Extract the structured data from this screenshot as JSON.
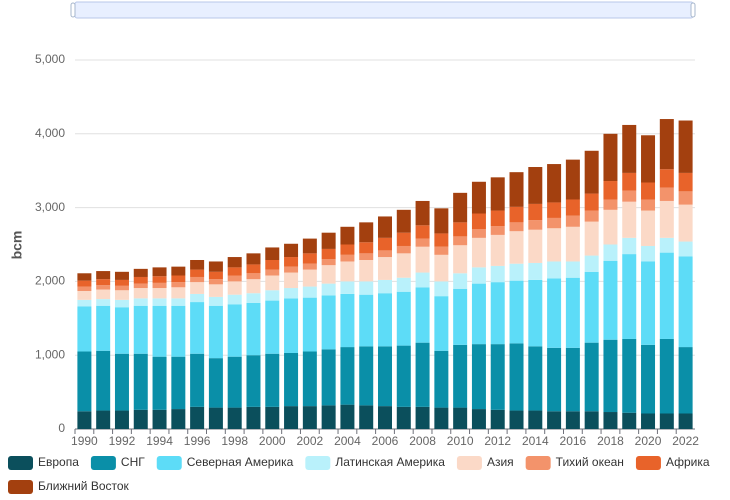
{
  "chart_data": {
    "type": "stacked-bar",
    "y_label": "bcm",
    "categories": [
      "1990",
      null,
      "1992",
      null,
      "1994",
      null,
      "1996",
      null,
      "1998",
      null,
      "2000",
      null,
      "2002",
      null,
      "2004",
      null,
      "2006",
      null,
      "2008",
      null,
      "2010",
      null,
      "2012",
      null,
      "2014",
      null,
      "2016",
      null,
      "2018",
      null,
      "2020",
      null,
      "2022"
    ],
    "ylim": [
      0,
      5000
    ],
    "yticks": [
      0,
      {
        "value": 1000,
        "label": "1,000"
      },
      {
        "value": 2000,
        "label": "2,000"
      },
      {
        "value": 3000,
        "label": "3,000"
      },
      {
        "value": 4000,
        "label": "4,000"
      },
      {
        "value": 5000,
        "label": "5,000"
      }
    ],
    "grid": true,
    "legend_position": "bottom",
    "series": [
      {
        "name": "Европа",
        "color": "#0b4f5c",
        "values": [
          240,
          250,
          250,
          260,
          260,
          270,
          300,
          290,
          290,
          300,
          300,
          310,
          310,
          320,
          330,
          320,
          310,
          300,
          300,
          290,
          290,
          270,
          260,
          250,
          250,
          240,
          240,
          240,
          230,
          220,
          210,
          210,
          210
        ]
      },
      {
        "name": "СНГ",
        "color": "#0a8fa8",
        "values": [
          810,
          810,
          770,
          760,
          720,
          710,
          720,
          670,
          690,
          700,
          720,
          720,
          740,
          760,
          780,
          800,
          810,
          830,
          870,
          770,
          850,
          880,
          890,
          910,
          870,
          860,
          860,
          930,
          980,
          1000,
          930,
          1010,
          900
        ]
      },
      {
        "name": "Северная Америка",
        "color": "#5ddcf7",
        "values": [
          610,
          610,
          630,
          650,
          690,
          690,
          700,
          710,
          710,
          710,
          720,
          740,
          730,
          730,
          720,
          700,
          720,
          730,
          750,
          740,
          760,
          820,
          840,
          850,
          900,
          940,
          950,
          960,
          1070,
          1150,
          1130,
          1170,
          1230
        ]
      },
      {
        "name": "Латинская Америка",
        "color": "#b9f1fb",
        "values": [
          90,
          90,
          100,
          100,
          100,
          100,
          110,
          120,
          130,
          130,
          140,
          140,
          150,
          160,
          170,
          180,
          180,
          190,
          200,
          200,
          210,
          220,
          220,
          230,
          230,
          230,
          220,
          220,
          220,
          220,
          210,
          200,
          200
        ]
      },
      {
        "name": "Азия",
        "color": "#fbd9c7",
        "values": [
          120,
          130,
          130,
          140,
          140,
          150,
          160,
          170,
          180,
          190,
          200,
          210,
          230,
          250,
          270,
          290,
          310,
          330,
          350,
          360,
          380,
          400,
          420,
          440,
          450,
          450,
          470,
          460,
          470,
          490,
          480,
          500,
          500
        ]
      },
      {
        "name": "Тихий океан",
        "color": "#f3936b",
        "values": [
          60,
          60,
          60,
          60,
          70,
          70,
          70,
          70,
          80,
          80,
          80,
          80,
          80,
          80,
          90,
          90,
          90,
          100,
          110,
          110,
          120,
          120,
          120,
          120,
          130,
          140,
          150,
          150,
          140,
          150,
          150,
          180,
          180
        ]
      },
      {
        "name": "Африка",
        "color": "#e8632a",
        "values": [
          80,
          80,
          80,
          90,
          90,
          90,
          100,
          100,
          110,
          120,
          130,
          130,
          140,
          140,
          140,
          150,
          170,
          180,
          180,
          180,
          190,
          210,
          210,
          210,
          220,
          210,
          220,
          230,
          250,
          240,
          230,
          250,
          250
        ]
      },
      {
        "name": "Ближний Восток",
        "color": "#a3400f",
        "values": [
          100,
          110,
          110,
          110,
          120,
          120,
          130,
          140,
          140,
          150,
          170,
          180,
          200,
          220,
          240,
          270,
          290,
          310,
          330,
          340,
          400,
          430,
          450,
          470,
          500,
          520,
          540,
          580,
          640,
          650,
          640,
          680,
          710
        ]
      }
    ]
  }
}
